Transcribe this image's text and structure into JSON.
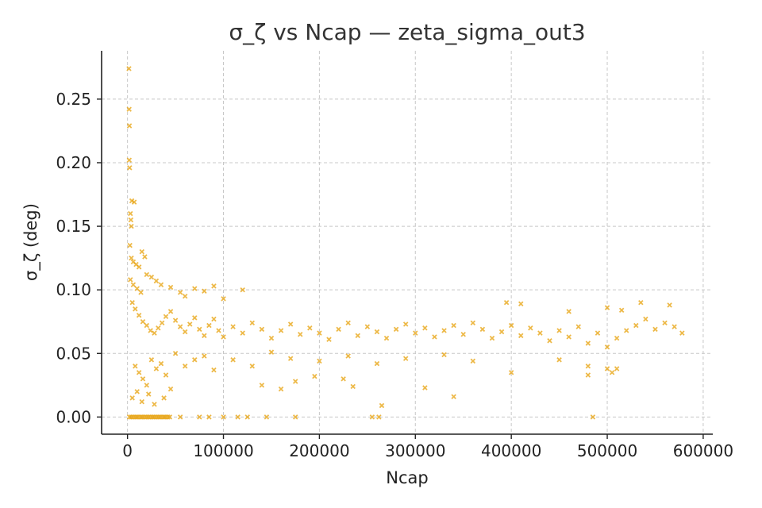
{
  "chart_data": {
    "type": "scatter",
    "title": "σ_ζ vs Ncap — zeta_sigma_out3",
    "xlabel": "Ncap",
    "ylabel": "σ_ζ (deg)",
    "xlim": [
      -27000,
      610000
    ],
    "ylim": [
      -0.0135,
      0.288
    ],
    "xticks": [
      0,
      100000,
      200000,
      300000,
      400000,
      500000,
      600000
    ],
    "xtick_labels": [
      "0",
      "100000",
      "200000",
      "300000",
      "400000",
      "500000",
      "600000"
    ],
    "yticks": [
      0.0,
      0.05,
      0.1,
      0.15,
      0.2,
      0.25
    ],
    "ytick_labels": [
      "0.00",
      "0.05",
      "0.10",
      "0.15",
      "0.20",
      "0.25"
    ],
    "grid": true,
    "marker": "x",
    "color": "#E8A20C",
    "series": [
      {
        "points": [
          [
            1500,
            0.274
          ],
          [
            1700,
            0.242
          ],
          [
            2000,
            0.229
          ],
          [
            1800,
            0.202
          ],
          [
            2200,
            0.196
          ],
          [
            4500,
            0.17
          ],
          [
            7000,
            0.169
          ],
          [
            3000,
            0.16
          ],
          [
            3500,
            0.155
          ],
          [
            4000,
            0.15
          ],
          [
            2500,
            0.135
          ],
          [
            4000,
            0.125
          ],
          [
            6000,
            0.122
          ],
          [
            9000,
            0.12
          ],
          [
            12000,
            0.118
          ],
          [
            15000,
            0.13
          ],
          [
            18000,
            0.126
          ],
          [
            3000,
            0.108
          ],
          [
            6000,
            0.104
          ],
          [
            10000,
            0.101
          ],
          [
            14000,
            0.098
          ],
          [
            20000,
            0.112
          ],
          [
            25000,
            0.11
          ],
          [
            30000,
            0.107
          ],
          [
            35000,
            0.104
          ],
          [
            45000,
            0.102
          ],
          [
            55000,
            0.098
          ],
          [
            70000,
            0.101
          ],
          [
            80000,
            0.099
          ],
          [
            90000,
            0.103
          ],
          [
            120000,
            0.1
          ],
          [
            60000,
            0.095
          ],
          [
            100000,
            0.093
          ],
          [
            5000,
            0.09
          ],
          [
            8000,
            0.085
          ],
          [
            12000,
            0.08
          ],
          [
            16000,
            0.075
          ],
          [
            20000,
            0.072
          ],
          [
            24000,
            0.068
          ],
          [
            28000,
            0.066
          ],
          [
            32000,
            0.07
          ],
          [
            36000,
            0.074
          ],
          [
            40000,
            0.079
          ],
          [
            45000,
            0.083
          ],
          [
            50000,
            0.076
          ],
          [
            55000,
            0.071
          ],
          [
            60000,
            0.067
          ],
          [
            65000,
            0.073
          ],
          [
            70000,
            0.078
          ],
          [
            75000,
            0.069
          ],
          [
            80000,
            0.064
          ],
          [
            85000,
            0.072
          ],
          [
            90000,
            0.077
          ],
          [
            95000,
            0.068
          ],
          [
            100000,
            0.063
          ],
          [
            110000,
            0.071
          ],
          [
            120000,
            0.066
          ],
          [
            130000,
            0.074
          ],
          [
            140000,
            0.069
          ],
          [
            150000,
            0.062
          ],
          [
            160000,
            0.068
          ],
          [
            170000,
            0.073
          ],
          [
            180000,
            0.065
          ],
          [
            190000,
            0.07
          ],
          [
            200000,
            0.066
          ],
          [
            210000,
            0.061
          ],
          [
            220000,
            0.069
          ],
          [
            230000,
            0.074
          ],
          [
            240000,
            0.064
          ],
          [
            250000,
            0.071
          ],
          [
            260000,
            0.067
          ],
          [
            270000,
            0.062
          ],
          [
            280000,
            0.069
          ],
          [
            290000,
            0.073
          ],
          [
            300000,
            0.066
          ],
          [
            310000,
            0.07
          ],
          [
            320000,
            0.063
          ],
          [
            330000,
            0.068
          ],
          [
            340000,
            0.072
          ],
          [
            350000,
            0.065
          ],
          [
            360000,
            0.074
          ],
          [
            370000,
            0.069
          ],
          [
            380000,
            0.062
          ],
          [
            390000,
            0.067
          ],
          [
            400000,
            0.072
          ],
          [
            410000,
            0.064
          ],
          [
            420000,
            0.07
          ],
          [
            430000,
            0.066
          ],
          [
            440000,
            0.06
          ],
          [
            450000,
            0.068
          ],
          [
            460000,
            0.063
          ],
          [
            470000,
            0.071
          ],
          [
            480000,
            0.058
          ],
          [
            490000,
            0.066
          ],
          [
            500000,
            0.055
          ],
          [
            510000,
            0.062
          ],
          [
            520000,
            0.068
          ],
          [
            530000,
            0.072
          ],
          [
            540000,
            0.077
          ],
          [
            550000,
            0.069
          ],
          [
            560000,
            0.074
          ],
          [
            570000,
            0.071
          ],
          [
            578000,
            0.066
          ],
          [
            395000,
            0.09
          ],
          [
            410000,
            0.089
          ],
          [
            460000,
            0.083
          ],
          [
            500000,
            0.086
          ],
          [
            515000,
            0.084
          ],
          [
            535000,
            0.09
          ],
          [
            565000,
            0.088
          ],
          [
            8000,
            0.04
          ],
          [
            12000,
            0.035
          ],
          [
            16000,
            0.03
          ],
          [
            20000,
            0.025
          ],
          [
            25000,
            0.045
          ],
          [
            30000,
            0.038
          ],
          [
            35000,
            0.042
          ],
          [
            40000,
            0.033
          ],
          [
            50000,
            0.05
          ],
          [
            60000,
            0.04
          ],
          [
            70000,
            0.045
          ],
          [
            80000,
            0.048
          ],
          [
            90000,
            0.037
          ],
          [
            110000,
            0.045
          ],
          [
            130000,
            0.04
          ],
          [
            150000,
            0.051
          ],
          [
            170000,
            0.046
          ],
          [
            200000,
            0.044
          ],
          [
            230000,
            0.048
          ],
          [
            260000,
            0.042
          ],
          [
            290000,
            0.046
          ],
          [
            330000,
            0.049
          ],
          [
            360000,
            0.044
          ],
          [
            450000,
            0.045
          ],
          [
            480000,
            0.04
          ],
          [
            500000,
            0.038
          ],
          [
            505000,
            0.035
          ],
          [
            510000,
            0.038
          ],
          [
            480000,
            0.033
          ],
          [
            5000,
            0.015
          ],
          [
            10000,
            0.02
          ],
          [
            15000,
            0.012
          ],
          [
            22000,
            0.018
          ],
          [
            28000,
            0.01
          ],
          [
            38000,
            0.015
          ],
          [
            45000,
            0.022
          ],
          [
            140000,
            0.025
          ],
          [
            160000,
            0.022
          ],
          [
            175000,
            0.028
          ],
          [
            195000,
            0.032
          ],
          [
            225000,
            0.03
          ],
          [
            235000,
            0.024
          ],
          [
            265000,
            0.009
          ],
          [
            310000,
            0.023
          ],
          [
            340000,
            0.016
          ],
          [
            400000,
            0.035
          ],
          [
            2000,
            0.0
          ],
          [
            4000,
            0.0
          ],
          [
            6000,
            0.0
          ],
          [
            8000,
            0.0
          ],
          [
            10000,
            0.0
          ],
          [
            12000,
            0.0
          ],
          [
            14000,
            0.0
          ],
          [
            16000,
            0.0
          ],
          [
            18000,
            0.0
          ],
          [
            20000,
            0.0
          ],
          [
            22000,
            0.0
          ],
          [
            24000,
            0.0
          ],
          [
            26000,
            0.0
          ],
          [
            28000,
            0.0
          ],
          [
            30000,
            0.0
          ],
          [
            32000,
            0.0
          ],
          [
            34000,
            0.0
          ],
          [
            36000,
            0.0
          ],
          [
            38000,
            0.0
          ],
          [
            40000,
            0.0
          ],
          [
            42000,
            0.0
          ],
          [
            44000,
            0.0
          ],
          [
            55000,
            0.0
          ],
          [
            75000,
            0.0
          ],
          [
            85000,
            0.0
          ],
          [
            100000,
            0.0
          ],
          [
            115000,
            0.0
          ],
          [
            125000,
            0.0
          ],
          [
            145000,
            0.0
          ],
          [
            175000,
            0.0
          ],
          [
            255000,
            0.0
          ],
          [
            262000,
            0.0
          ],
          [
            485000,
            0.0
          ]
        ]
      }
    ]
  }
}
